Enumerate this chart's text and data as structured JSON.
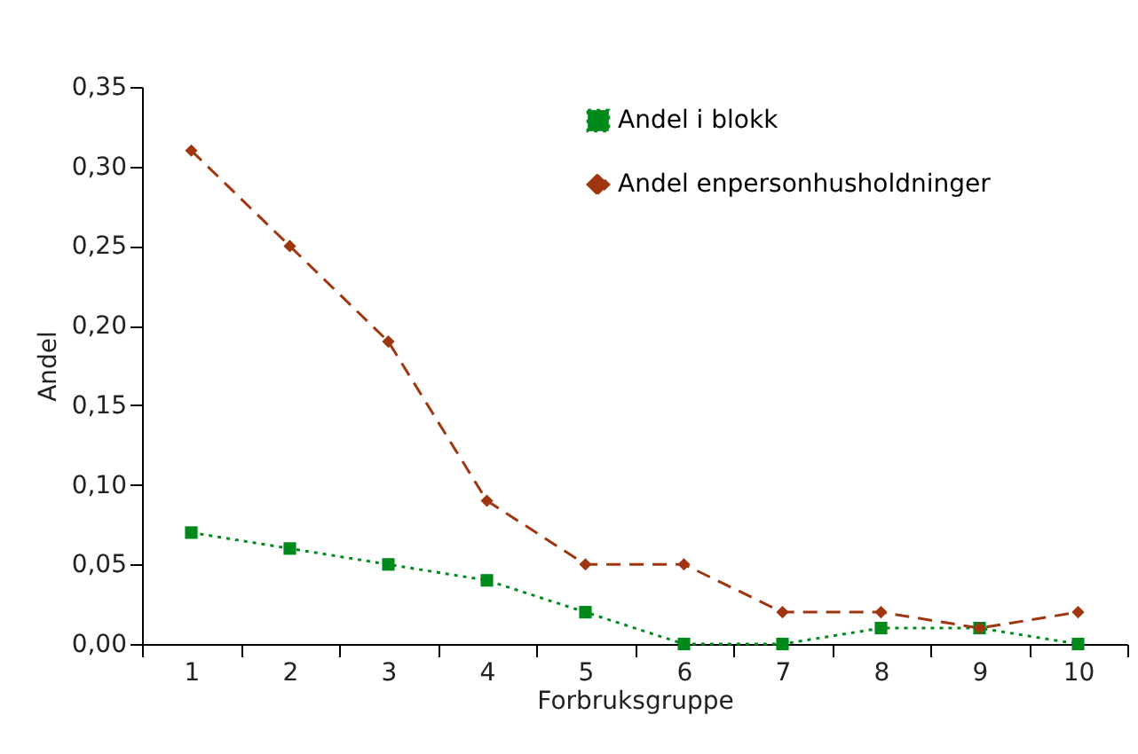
{
  "chart_data": {
    "type": "line",
    "xlabel": "Forbruksgruppe",
    "ylabel": "Andel",
    "categories": [
      "1",
      "2",
      "3",
      "4",
      "5",
      "6",
      "7",
      "8",
      "9",
      "10"
    ],
    "series": [
      {
        "name": "Andel i blokk",
        "color": "#008a1c",
        "marker": "square",
        "line_style": "dotted",
        "values": [
          0.07,
          0.06,
          0.05,
          0.04,
          0.02,
          0.0,
          0.0,
          0.01,
          0.01,
          0.0
        ]
      },
      {
        "name": "Andel enpersonhusholdninger",
        "color": "#a0360f",
        "marker": "diamond",
        "line_style": "dashed",
        "values": [
          0.31,
          0.25,
          0.19,
          0.09,
          0.05,
          0.05,
          0.02,
          0.02,
          0.01,
          0.02
        ]
      }
    ],
    "ylim": [
      0,
      0.35
    ],
    "yticks": [
      {
        "value": 0,
        "label": "0,00"
      },
      {
        "value": 0.05,
        "label": "0,05"
      },
      {
        "value": 0.1,
        "label": "0,10"
      },
      {
        "value": 0.15,
        "label": "0,15"
      },
      {
        "value": 0.2,
        "label": "0,20"
      },
      {
        "value": 0.25,
        "label": "0,25"
      },
      {
        "value": 0.3,
        "label": "0,30"
      },
      {
        "value": 0.35,
        "label": "0,35"
      }
    ],
    "grid": false,
    "legend": "top right"
  }
}
